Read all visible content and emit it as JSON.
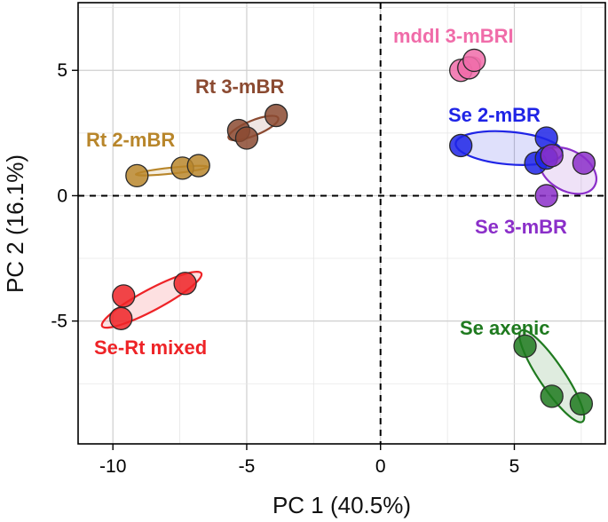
{
  "chart_data": {
    "type": "scatter",
    "title": "",
    "xlabel": "PC 1 (40.5%)",
    "ylabel": "PC 2 (16.1%)",
    "xlim": [
      -11.3,
      8.4
    ],
    "ylim": [
      -9.9,
      7.7
    ],
    "xticks": [
      -10,
      -5,
      0,
      5
    ],
    "yticks": [
      -5,
      0,
      5
    ],
    "x_tick_labels": [
      "-10",
      "-5",
      "0",
      "5"
    ],
    "y_tick_labels": [
      "-5",
      "0",
      "5"
    ],
    "grid": true,
    "reference_lines": {
      "x": 0,
      "y": 0
    },
    "series": [
      {
        "name": "mddl 3-mBRI",
        "color": "#f06ca9",
        "points": [
          [
            3.0,
            5.0
          ],
          [
            3.3,
            5.1
          ],
          [
            3.5,
            5.4
          ]
        ],
        "ellipse": {
          "center": [
            3.3,
            5.2
          ],
          "rx": 0.45,
          "ry": 0.3,
          "angle_deg": 20
        }
      },
      {
        "name": "Rt 3-mBR",
        "color": "#8b4a31",
        "points": [
          [
            -5.3,
            2.6
          ],
          [
            -5.0,
            2.3
          ],
          [
            -3.9,
            3.2
          ]
        ],
        "ellipse": {
          "center": [
            -4.75,
            2.7
          ],
          "rx": 1.0,
          "ry": 0.3,
          "angle_deg": 22
        }
      },
      {
        "name": "Rt 2-mBR",
        "color": "#b8862b",
        "points": [
          [
            -9.1,
            0.8
          ],
          [
            -7.4,
            1.1
          ],
          [
            -6.8,
            1.2
          ]
        ],
        "ellipse": {
          "center": [
            -7.8,
            1.0
          ],
          "rx": 1.35,
          "ry": 0.12,
          "angle_deg": 6
        }
      },
      {
        "name": "Se 2-mBR",
        "color": "#1f24e6",
        "points": [
          [
            3.0,
            2.0
          ],
          [
            6.2,
            2.3
          ],
          [
            5.8,
            1.3
          ],
          [
            6.2,
            1.5
          ]
        ],
        "ellipse": {
          "center": [
            4.8,
            1.9
          ],
          "rx": 2.0,
          "ry": 0.65,
          "angle_deg": -5
        }
      },
      {
        "name": "Se 3-mBR",
        "color": "#8b2fc9",
        "points": [
          [
            6.4,
            1.6
          ],
          [
            7.6,
            1.3
          ],
          [
            6.2,
            0.0
          ]
        ],
        "ellipse": {
          "center": [
            7.0,
            1.0
          ],
          "rx": 1.15,
          "ry": 0.8,
          "angle_deg": -30
        }
      },
      {
        "name": "Se-Rt mixed",
        "color": "#ee2327",
        "points": [
          [
            -9.6,
            -4.0
          ],
          [
            -9.7,
            -4.9
          ],
          [
            -7.3,
            -3.5
          ]
        ],
        "ellipse": {
          "center": [
            -8.55,
            -4.15
          ],
          "rx": 2.1,
          "ry": 0.42,
          "angle_deg": 28
        }
      },
      {
        "name": "Se axenic",
        "color": "#1f7a1f",
        "points": [
          [
            5.4,
            -6.0
          ],
          [
            6.4,
            -8.0
          ],
          [
            7.5,
            -8.3
          ]
        ],
        "ellipse": {
          "center": [
            6.4,
            -7.2
          ],
          "rx": 2.05,
          "ry": 0.5,
          "angle_deg": -56
        }
      }
    ]
  }
}
